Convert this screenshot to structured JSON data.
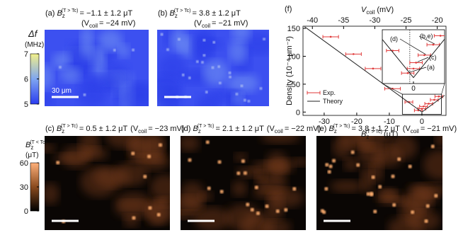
{
  "panels": [
    {
      "label": "(a)",
      "symbol": "B",
      "sub": "z",
      "sup": "(T > Tc)",
      "field": "= −1.1 ± 1.2 μT",
      "coil_open": "(V",
      "coil_sub": "coil",
      "coil_value": "= −24 mV)"
    },
    {
      "label": "(b)",
      "symbol": "B",
      "sub": "z",
      "sup": "(T > Tc)",
      "field": "= 3.8 ± 1.2 μT",
      "coil_open": "(V",
      "coil_sub": "coil",
      "coil_value": "= −21 mV)"
    },
    {
      "label": "(c)",
      "symbol": "B",
      "sub": "z",
      "sup": "(T > Tc)",
      "field": "= 0.5 ± 1.2 μT",
      "coil_open": "(V",
      "coil_sub": "coil",
      "coil_value": "= −23 mV)"
    },
    {
      "label": "(d)",
      "symbol": "B",
      "sub": "z",
      "sup": "(T > Tc)",
      "field": "= 2.1 ± 1.2 μT",
      "coil_open": "(V",
      "coil_sub": "coil",
      "coil_value": "= −22 mV)"
    },
    {
      "label": "(e)",
      "symbol": "B",
      "sub": "z",
      "sup": "(T > Tc)",
      "field": "= 3.8 ± 1.2 μT",
      "coil_open": "(V",
      "coil_sub": "coil",
      "coil_value": "= −21 mV)"
    }
  ],
  "colorbars": [
    {
      "symbol": "Δf",
      "unit": "(MHz)",
      "lim": [
        5,
        7
      ],
      "ticks": [
        5,
        6,
        7
      ]
    },
    {
      "symbol": "B",
      "sub": "z",
      "sup": "(T < Tc)",
      "unit": "(μT)",
      "lim": [
        0,
        60
      ],
      "ticks": [
        0,
        30,
        60
      ]
    }
  ],
  "scale_bar": "30 μm",
  "chart_data": {
    "type": "scatter",
    "panel_label": "(f)",
    "xlabel_symbol": "B",
    "xlabel_sub": "z",
    "xlabel_sup": "(T > Tc)",
    "xlabel_unit": "(μT)",
    "x2label_symbol": "V",
    "x2label_sub": "coil",
    "x2label_unit": "(mV)",
    "ylabel": "Density (10⁻⁴ μm⁻²)",
    "xlim": [
      -36.5,
      7.4
    ],
    "xticks": [
      -30,
      -20,
      -10,
      0
    ],
    "x2lim": [
      -41.5,
      -18.6
    ],
    "x2ticks": [
      -40,
      -35,
      -30,
      -25,
      -20
    ],
    "ylim": [
      -6,
      154
    ],
    "yticks": [
      0,
      50,
      100,
      150
    ],
    "legend": "lower left",
    "series": [
      {
        "name": "Exp.",
        "color": "#e03a3a",
        "x": [
          -28,
          -21,
          -15,
          -9,
          -4,
          -1.1,
          0,
          0.5,
          2.1,
          3.8,
          5.2
        ],
        "values": [
          135,
          104,
          78,
          42,
          18,
          3,
          6,
          10,
          15,
          22,
          28
        ],
        "xerr": [
          2.4,
          2.4,
          2.4,
          2.4,
          1.2,
          1.2,
          1.2,
          1.2,
          1.2,
          1.2,
          1.2
        ]
      },
      {
        "name": "Theory",
        "color": "#222222",
        "type": "line",
        "x": [
          -36,
          0,
          7
        ],
        "values": [
          153,
          0,
          30
        ]
      }
    ],
    "inset": {
      "xlim": [
        -6,
        6
      ],
      "ylim": [
        -4,
        32
      ],
      "xticks": [
        0
      ],
      "annotations": [
        "(d)",
        "(b,e)",
        "(c)",
        "(a)"
      ]
    }
  }
}
